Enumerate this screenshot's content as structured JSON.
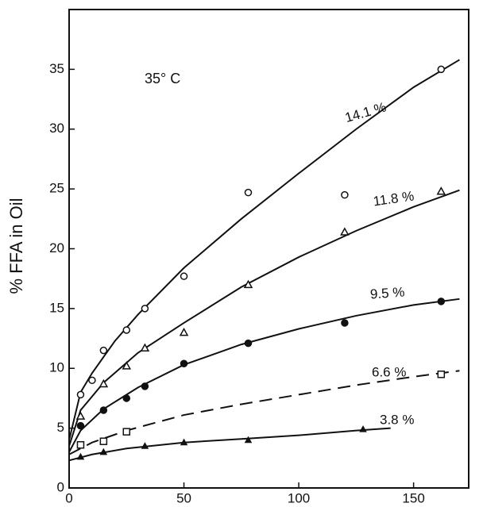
{
  "chart_data": {
    "type": "scatter",
    "annotation": "35° C",
    "ylabel": "% FFA in Oil",
    "xlim": [
      0,
      174
    ],
    "ylim": [
      0,
      40
    ],
    "xticks": [
      0,
      50,
      100,
      150
    ],
    "yticks": [
      0,
      5,
      10,
      15,
      20,
      25,
      30,
      35
    ],
    "grid": false,
    "color": "#111111",
    "series": [
      {
        "name": "14.1 %",
        "marker": "open-circle",
        "dash": false,
        "x": [
          5,
          10,
          15,
          25,
          33,
          50,
          78,
          120,
          162
        ],
        "values": [
          7.8,
          9,
          11.5,
          13.2,
          15,
          17.7,
          24.7,
          24.5,
          35
        ],
        "curve_x": [
          0,
          5,
          10,
          20,
          30,
          50,
          75,
          100,
          125,
          150,
          170
        ],
        "curve_y": [
          4,
          8,
          9.6,
          12.3,
          14.5,
          18.4,
          22.5,
          26.3,
          30,
          33.5,
          35.8
        ]
      },
      {
        "name": "11.8 %",
        "marker": "open-triangle",
        "dash": false,
        "x": [
          5,
          15,
          25,
          33,
          50,
          78,
          120,
          162
        ],
        "values": [
          6,
          8.7,
          10.2,
          11.7,
          13,
          17,
          21.4,
          24.8
        ],
        "curve_x": [
          0,
          5,
          15,
          30,
          50,
          75,
          100,
          125,
          150,
          170
        ],
        "curve_y": [
          3.5,
          6.5,
          8.8,
          11.3,
          13.8,
          16.8,
          19.3,
          21.5,
          23.5,
          24.9
        ]
      },
      {
        "name": "9.5 %",
        "marker": "filled-circle",
        "dash": false,
        "x": [
          5,
          15,
          25,
          33,
          50,
          78,
          120,
          162
        ],
        "values": [
          5.2,
          6.5,
          7.5,
          8.5,
          10.4,
          12.1,
          13.8,
          15.6
        ],
        "curve_x": [
          0,
          5,
          15,
          30,
          50,
          75,
          100,
          125,
          150,
          170
        ],
        "curve_y": [
          3,
          4.8,
          6.6,
          8.4,
          10.3,
          12,
          13.3,
          14.4,
          15.3,
          15.8
        ]
      },
      {
        "name": "6.6 %",
        "marker": "open-square",
        "dash": true,
        "x": [
          5,
          15,
          25,
          162
        ],
        "values": [
          3.6,
          3.9,
          4.7,
          9.5
        ],
        "curve_x": [
          0,
          10,
          25,
          50,
          75,
          100,
          125,
          150,
          170
        ],
        "curve_y": [
          2.8,
          3.8,
          4.8,
          6.1,
          7,
          7.8,
          8.6,
          9.3,
          9.8
        ]
      },
      {
        "name": "3.8 %",
        "marker": "filled-triangle",
        "dash": false,
        "x": [
          5,
          15,
          33,
          50,
          78,
          128
        ],
        "values": [
          2.6,
          3,
          3.5,
          3.8,
          4,
          4.9
        ],
        "curve_x": [
          0,
          10,
          25,
          50,
          75,
          100,
          125,
          140
        ],
        "curve_y": [
          2.3,
          2.8,
          3.3,
          3.8,
          4.1,
          4.4,
          4.8,
          5
        ]
      }
    ]
  }
}
